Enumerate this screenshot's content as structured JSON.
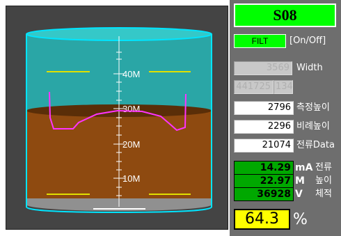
{
  "sensor": {
    "id": "S08"
  },
  "filter": {
    "button_label": "FILT",
    "option_label": "[On/Off]"
  },
  "width": {
    "value": "3569",
    "label": "Width"
  },
  "disabled_pair": {
    "left": "441725",
    "right": "134"
  },
  "fields": [
    {
      "value": "2796",
      "label": "측정높이"
    },
    {
      "value": "2296",
      "label": "비례높이"
    },
    {
      "value": "21074",
      "label": "전류Data"
    }
  ],
  "measurements": {
    "current": {
      "value": "14.29",
      "unit": "mA",
      "label": "전류"
    },
    "height": {
      "value": "22.97",
      "unit": "M",
      "label": "높이"
    },
    "volume": {
      "value": "36928",
      "unit": "V",
      "label": "체적"
    }
  },
  "fill": {
    "percent": "64.3",
    "symbol": "%",
    "level_fraction": 0.643
  },
  "scale": {
    "labels": [
      "40M",
      "30M",
      "20M",
      "10M"
    ]
  },
  "colors": {
    "panel_bg": "#444444",
    "right_bg": "#6e6e6e",
    "tank_glass": "#2aa6a6",
    "tank_rim": "#00e5ff",
    "liquid": "#8e4a10",
    "liquid_top": "#5a2e08",
    "tank_floor": "#909090",
    "profile_line": "#ff33ff",
    "marker_line": "#e0e000",
    "status_green": "#00ff00",
    "measure_green": "#00a800",
    "percent_yellow": "#ffff00"
  }
}
